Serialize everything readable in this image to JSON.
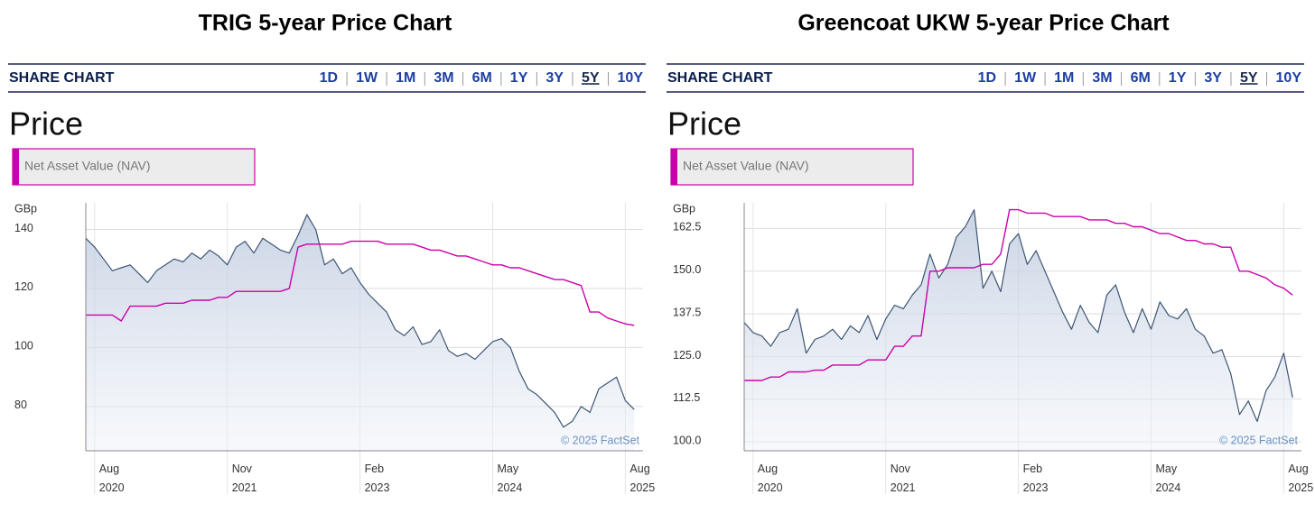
{
  "chart_data": [
    {
      "type": "line",
      "title": "TRIG 5-year Price Chart",
      "header": "SHARE CHART",
      "ranges": [
        "1D",
        "1W",
        "1M",
        "3M",
        "6M",
        "1Y",
        "3Y",
        "5Y",
        "10Y"
      ],
      "selected_range": "5Y",
      "panel_title": "Price",
      "y_unit": "GBp",
      "credit": "© 2025 FactSet",
      "x": [
        "2020-07",
        "2020-08",
        "2020-09",
        "2020-10",
        "2020-11",
        "2020-12",
        "2021-01",
        "2021-02",
        "2021-03",
        "2021-04",
        "2021-05",
        "2021-06",
        "2021-07",
        "2021-08",
        "2021-09",
        "2021-10",
        "2021-11",
        "2021-12",
        "2022-01",
        "2022-02",
        "2022-03",
        "2022-04",
        "2022-05",
        "2022-06",
        "2022-07",
        "2022-08",
        "2022-09",
        "2022-10",
        "2022-11",
        "2022-12",
        "2023-01",
        "2023-02",
        "2023-03",
        "2023-04",
        "2023-05",
        "2023-06",
        "2023-07",
        "2023-08",
        "2023-09",
        "2023-10",
        "2023-11",
        "2023-12",
        "2024-01",
        "2024-02",
        "2024-03",
        "2024-04",
        "2024-05",
        "2024-06",
        "2024-07",
        "2024-08",
        "2024-09",
        "2024-10",
        "2024-11",
        "2024-12",
        "2025-01",
        "2025-02",
        "2025-03",
        "2025-04",
        "2025-05",
        "2025-06",
        "2025-07",
        "2025-08",
        "2025-09"
      ],
      "series": [
        {
          "color": "#3d5573",
          "values": [
            137,
            134,
            130,
            126,
            127,
            128,
            125,
            122,
            126,
            128,
            130,
            129,
            132,
            130,
            133,
            131,
            128,
            134,
            136,
            132,
            137,
            135,
            133,
            132,
            138,
            145,
            140,
            128,
            130,
            125,
            127,
            122,
            118,
            115,
            112,
            106,
            104,
            107,
            101,
            102,
            106,
            99,
            97,
            98,
            96,
            99,
            102,
            103,
            100,
            92,
            86,
            84,
            81,
            78,
            73,
            75,
            80,
            78,
            86,
            88,
            90,
            82,
            79
          ]
        },
        {
          "name": "Net Asset Value (NAV)",
          "color": "#cc00aa",
          "values": [
            111,
            111,
            111,
            111,
            109,
            114,
            114,
            114,
            114,
            115,
            115,
            115,
            116,
            116,
            116,
            117,
            117,
            119,
            119,
            119,
            119,
            119,
            119,
            120,
            134,
            135,
            135,
            135,
            135,
            135,
            136,
            136,
            136,
            136,
            135,
            135,
            135,
            135,
            134,
            133,
            133,
            132,
            131,
            131,
            130,
            129,
            128,
            128,
            127,
            127,
            126,
            125,
            124,
            123,
            123,
            122,
            121,
            112,
            112,
            110,
            109,
            108,
            107.5
          ]
        }
      ],
      "xlim": [
        "2020-07",
        "2025-10"
      ],
      "xticks": [
        {
          "value": "2020-08",
          "label": "Aug 2020"
        },
        {
          "value": "2021-11",
          "label": "Nov 2021"
        },
        {
          "value": "2023-02",
          "label": "Feb 2023"
        },
        {
          "value": "2024-05",
          "label": "May 2024"
        },
        {
          "value": "2025-08",
          "label": "Aug 2025"
        }
      ],
      "ylim": [
        65,
        149
      ],
      "yticks": [
        80,
        100,
        120,
        140
      ],
      "grid": true
    },
    {
      "type": "line",
      "title": "Greencoat UKW 5-year Price Chart",
      "header": "SHARE CHART",
      "ranges": [
        "1D",
        "1W",
        "1M",
        "3M",
        "6M",
        "1Y",
        "3Y",
        "5Y",
        "10Y"
      ],
      "selected_range": "5Y",
      "panel_title": "Price",
      "y_unit": "GBp",
      "credit": "© 2025 FactSet",
      "x": [
        "2020-07",
        "2020-08",
        "2020-09",
        "2020-10",
        "2020-11",
        "2020-12",
        "2021-01",
        "2021-02",
        "2021-03",
        "2021-04",
        "2021-05",
        "2021-06",
        "2021-07",
        "2021-08",
        "2021-09",
        "2021-10",
        "2021-11",
        "2021-12",
        "2022-01",
        "2022-02",
        "2022-03",
        "2022-04",
        "2022-05",
        "2022-06",
        "2022-07",
        "2022-08",
        "2022-09",
        "2022-10",
        "2022-11",
        "2022-12",
        "2023-01",
        "2023-02",
        "2023-03",
        "2023-04",
        "2023-05",
        "2023-06",
        "2023-07",
        "2023-08",
        "2023-09",
        "2023-10",
        "2023-11",
        "2023-12",
        "2024-01",
        "2024-02",
        "2024-03",
        "2024-04",
        "2024-05",
        "2024-06",
        "2024-07",
        "2024-08",
        "2024-09",
        "2024-10",
        "2024-11",
        "2024-12",
        "2025-01",
        "2025-02",
        "2025-03",
        "2025-04",
        "2025-05",
        "2025-06",
        "2025-07",
        "2025-08",
        "2025-09"
      ],
      "series": [
        {
          "color": "#3d5573",
          "values": [
            135,
            132,
            131,
            128,
            132,
            133,
            139,
            126,
            130,
            131,
            133,
            130,
            134,
            132,
            137,
            130,
            136,
            140,
            139,
            143,
            146,
            155,
            148,
            152,
            160,
            163,
            168,
            145,
            150,
            144,
            158,
            161,
            152,
            156,
            150,
            144,
            138,
            133,
            140,
            135,
            132,
            143,
            146,
            138,
            132,
            139,
            133,
            141,
            137,
            136,
            139,
            133,
            131,
            126,
            127,
            120,
            108,
            112,
            106,
            115,
            119,
            126,
            113
          ]
        },
        {
          "name": "Net Asset Value (NAV)",
          "color": "#cc00aa",
          "values": [
            118,
            118,
            118,
            119,
            119,
            120.5,
            120.5,
            120.5,
            121,
            121,
            122.5,
            122.5,
            122.5,
            122.5,
            124,
            124,
            124,
            128,
            128,
            131,
            131,
            150,
            150,
            151,
            151,
            151,
            151,
            152,
            152,
            155,
            168,
            168,
            167,
            167,
            167,
            166,
            166,
            166,
            166,
            165,
            165,
            165,
            164,
            164,
            163,
            163,
            162,
            161,
            161,
            160,
            159,
            159,
            158,
            158,
            157,
            157,
            150,
            150,
            149,
            148,
            146,
            145,
            143
          ]
        }
      ],
      "xlim": [
        "2020-07",
        "2025-10"
      ],
      "xticks": [
        {
          "value": "2020-08",
          "label": "Aug 2020"
        },
        {
          "value": "2021-11",
          "label": "Nov 2021"
        },
        {
          "value": "2023-02",
          "label": "Feb 2023"
        },
        {
          "value": "2024-05",
          "label": "May 2024"
        },
        {
          "value": "2025-08",
          "label": "Aug 2025"
        }
      ],
      "ylim": [
        97.4,
        170
      ],
      "yticks": [
        {
          "value": 100.0,
          "label": "100.0"
        },
        112.5,
        {
          "value": 125.0,
          "label": "125.0"
        },
        137.5,
        {
          "value": 150.0,
          "label": "150.0"
        },
        162.5
      ],
      "grid": true
    }
  ]
}
